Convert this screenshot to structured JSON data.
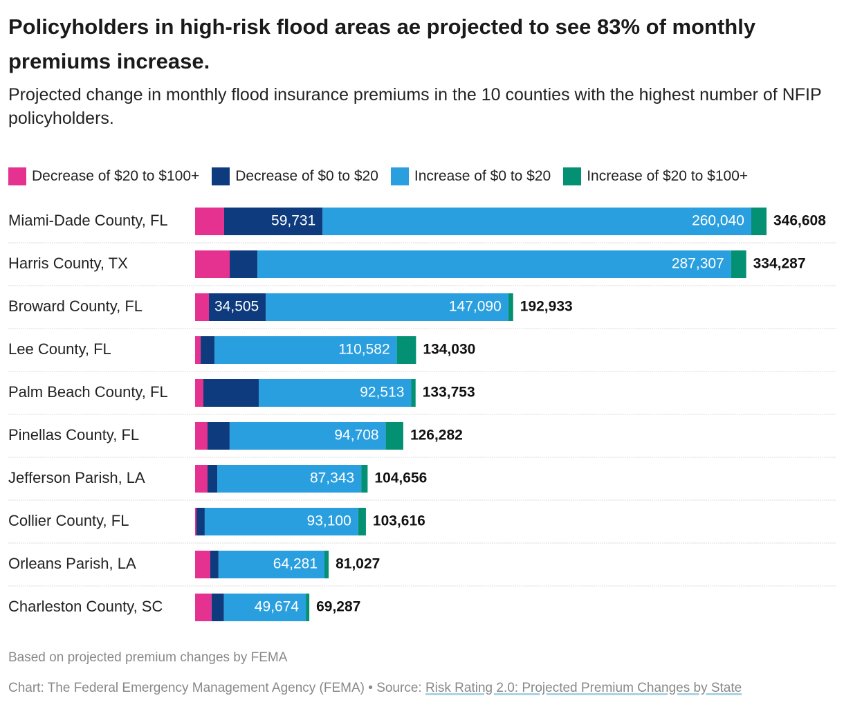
{
  "chart_data": {
    "type": "stacked-bar-horizontal",
    "title": "Policyholders in high-risk flood areas ae projected to see 83% of monthly premiums increase.",
    "subtitle": "Projected change in monthly flood insurance premiums in the 10 counties with the highest number of NFIP policyholders.",
    "categories": [
      "Miami-Dade County, FL",
      "Harris County, TX",
      "Broward County, FL",
      "Lee County, FL",
      "Palm Beach County, FL",
      "Pinellas County, FL",
      "Jefferson Parish, LA",
      "Collier County, FL",
      "Orleans Parish, LA",
      "Charleston County, SC"
    ],
    "series": [
      {
        "name": "Decrease of $20 to $100+",
        "color": "#e5318f",
        "values": [
          17600,
          21000,
          8400,
          3400,
          5000,
          7550,
          7550,
          840,
          9200,
          10000
        ]
      },
      {
        "name": "Decrease of $0 to $20",
        "color": "#0d3b7e",
        "values": [
          59731,
          16800,
          34505,
          8400,
          33600,
          13400,
          5900,
          5000,
          5000,
          7500
        ],
        "value_labels": [
          "59,731",
          null,
          "34,505",
          null,
          null,
          null,
          null,
          null,
          null,
          null
        ]
      },
      {
        "name": "Increase of $0 to $20",
        "color": "#2a9fdf",
        "values": [
          260040,
          287307,
          147090,
          110582,
          92513,
          94708,
          87343,
          93100,
          64281,
          49674
        ],
        "value_labels": [
          "260,040",
          "287,307",
          "147,090",
          "110,582",
          "92,513",
          "94,708",
          "87,343",
          "93,100",
          "64,281",
          "49,674"
        ]
      },
      {
        "name": "Increase of $20 to $100+",
        "color": "#049072",
        "values": [
          9237,
          9180,
          2938,
          11648,
          2640,
          10624,
          3863,
          4676,
          2546,
          2113
        ]
      }
    ],
    "totals": [
      346608,
      334287,
      192933,
      134030,
      133753,
      126282,
      104656,
      103616,
      81027,
      69287
    ],
    "total_labels": [
      "346,608",
      "334,287",
      "192,933",
      "134,030",
      "133,753",
      "126,282",
      "104,656",
      "103,616",
      "81,027",
      "69,287"
    ],
    "note": "Based on projected premium changes by FEMA",
    "credit": "Chart: The Federal Emergency Management Agency (FEMA) • Source: ",
    "source_link": "Risk Rating 2.0: Projected Premium Changes by State"
  }
}
